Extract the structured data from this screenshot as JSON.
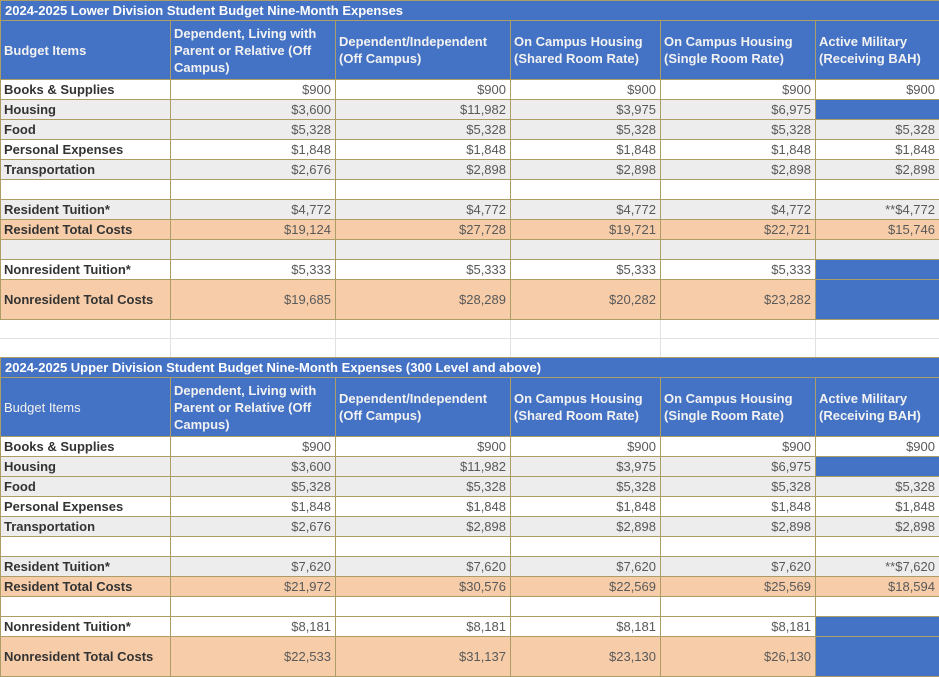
{
  "colors": {
    "header_blue": "#4472C4",
    "border_tan": "#AC9D67",
    "row_gray": "#EDEDED",
    "row_peach": "#F7CDA9",
    "gridline": "#E2E2E2",
    "label_text": "#333333",
    "value_text": "#595959",
    "header_text": "#F2F2F2"
  },
  "columns": [
    "Budget Items",
    "Dependent, Living with Parent or Relative (Off Campus)",
    "Dependent/Independent (Off Campus)",
    "On Campus Housing (Shared Room Rate)",
    "On Campus Housing (Single Room Rate)",
    "Active Military (Receiving BAH)"
  ],
  "tables": [
    {
      "id": "lower-division",
      "title": "2024-2025 Lower Division Student Budget Nine-Month Expenses",
      "budget_items_bold": true,
      "rows": [
        {
          "label": "Books & Supplies",
          "cells": [
            "$900",
            "$900",
            "$900",
            "$900",
            "$900"
          ],
          "bg": "white"
        },
        {
          "label": "Housing",
          "cells": [
            "$3,600",
            "$11,982",
            "$3,975",
            "$6,975",
            ""
          ],
          "bg": "gray",
          "blue_cells": [
            4
          ]
        },
        {
          "label": "Food",
          "cells": [
            "$5,328",
            "$5,328",
            "$5,328",
            "$5,328",
            "$5,328"
          ],
          "bg": "gray"
        },
        {
          "label": "Personal Expenses",
          "cells": [
            "$1,848",
            "$1,848",
            "$1,848",
            "$1,848",
            "$1,848"
          ],
          "bg": "white"
        },
        {
          "label": "Transportation",
          "cells": [
            "$2,676",
            "$2,898",
            "$2,898",
            "$2,898",
            "$2,898"
          ],
          "bg": "gray"
        },
        {
          "label": "",
          "cells": [
            "",
            "",
            "",
            "",
            ""
          ],
          "bg": "white"
        },
        {
          "label": "Resident Tuition*",
          "cells": [
            "$4,772",
            "$4,772",
            "$4,772",
            "$4,772",
            "**$4,772"
          ],
          "bg": "gray"
        },
        {
          "label": "Resident Total Costs",
          "cells": [
            "$19,124",
            "$27,728",
            "$19,721",
            "$22,721",
            "$15,746"
          ],
          "bg": "peach"
        },
        {
          "label": "",
          "cells": [
            "",
            "",
            "",
            "",
            ""
          ],
          "bg": "gray"
        },
        {
          "label": "Nonresident Tuition*",
          "cells": [
            "$5,333",
            "$5,333",
            "$5,333",
            "$5,333",
            ""
          ],
          "bg": "white",
          "blue_cells": [
            4
          ]
        },
        {
          "label": "Nonresident Total Costs",
          "cells": [
            "$19,685",
            "$28,289",
            "$20,282",
            "$23,282",
            ""
          ],
          "bg": "peach",
          "blue_cells": [
            4
          ],
          "tall": true
        }
      ]
    },
    {
      "id": "upper-division",
      "title": "2024-2025 Upper Division Student Budget Nine-Month Expenses (300 Level and above)",
      "budget_items_bold": false,
      "rows": [
        {
          "label": "Books & Supplies",
          "cells": [
            "$900",
            "$900",
            "$900",
            "$900",
            "$900"
          ],
          "bg": "white"
        },
        {
          "label": "Housing",
          "cells": [
            "$3,600",
            "$11,982",
            "$3,975",
            "$6,975",
            ""
          ],
          "bg": "gray",
          "blue_cells": [
            4
          ]
        },
        {
          "label": "Food",
          "cells": [
            "$5,328",
            "$5,328",
            "$5,328",
            "$5,328",
            "$5,328"
          ],
          "bg": "gray"
        },
        {
          "label": "Personal Expenses",
          "cells": [
            "$1,848",
            "$1,848",
            "$1,848",
            "$1,848",
            "$1,848"
          ],
          "bg": "white"
        },
        {
          "label": "Transportation",
          "cells": [
            "$2,676",
            "$2,898",
            "$2,898",
            "$2,898",
            "$2,898"
          ],
          "bg": "gray"
        },
        {
          "label": "",
          "cells": [
            "",
            "",
            "",
            "",
            ""
          ],
          "bg": "white"
        },
        {
          "label": "Resident Tuition*",
          "cells": [
            "$7,620",
            "$7,620",
            "$7,620",
            "$7,620",
            "**$7,620"
          ],
          "bg": "gray"
        },
        {
          "label": "Resident Total Costs",
          "cells": [
            "$21,972",
            "$30,576",
            "$22,569",
            "$25,569",
            "$18,594"
          ],
          "bg": "peach"
        },
        {
          "label": "",
          "cells": [
            "",
            "",
            "",
            "",
            ""
          ],
          "bg": "white"
        },
        {
          "label": "Nonresident Tuition*",
          "cells": [
            "$8,181",
            "$8,181",
            "$8,181",
            "$8,181",
            ""
          ],
          "bg": "white",
          "blue_cells": [
            4
          ]
        },
        {
          "label": "Nonresident Total Costs",
          "cells": [
            "$22,533",
            "$31,137",
            "$23,130",
            "$26,130",
            ""
          ],
          "bg": "peach",
          "blue_cells": [
            4
          ],
          "tall": true
        }
      ]
    }
  ]
}
